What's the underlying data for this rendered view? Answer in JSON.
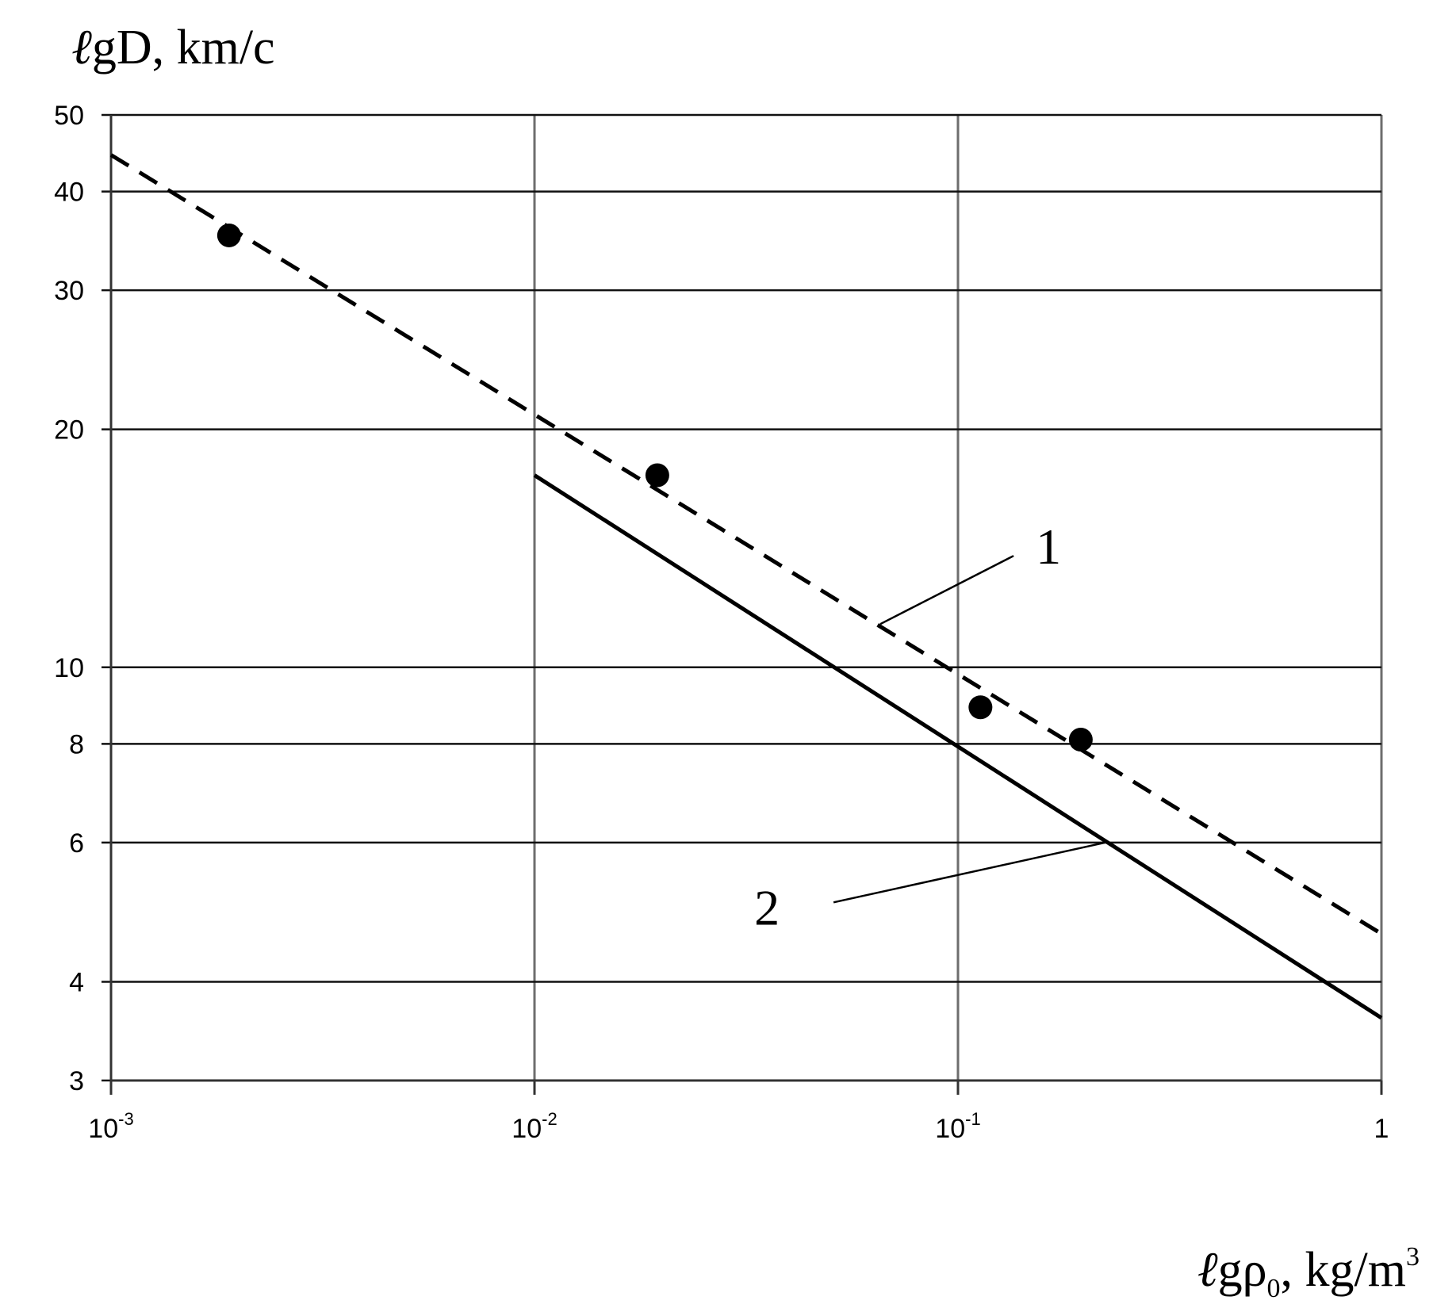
{
  "chart_data": {
    "type": "line",
    "x_scale": "log",
    "y_scale": "log",
    "xlim": [
      0.001,
      1
    ],
    "ylim": [
      3,
      50
    ],
    "grid": true,
    "y_title": {
      "prefix": "ℓ",
      "main": "gD,  km/c"
    },
    "x_title": {
      "prefix": "ℓ",
      "main": "gρ",
      "sub": "0",
      "after": ",  kg/m",
      "sup": "3"
    },
    "x_ticks": [
      {
        "value": 0.001,
        "base": "10",
        "exp": "-3"
      },
      {
        "value": 0.01,
        "base": "10",
        "exp": "-2"
      },
      {
        "value": 0.1,
        "base": "10",
        "exp": "-1"
      },
      {
        "value": 1,
        "base": "1",
        "exp": ""
      }
    ],
    "y_ticks": [
      {
        "value": 3,
        "label": "3"
      },
      {
        "value": 4,
        "label": "4"
      },
      {
        "value": 6,
        "label": "6"
      },
      {
        "value": 8,
        "label": "8"
      },
      {
        "value": 10,
        "label": "10"
      },
      {
        "value": 20,
        "label": "20"
      },
      {
        "value": 30,
        "label": "30"
      },
      {
        "value": 40,
        "label": "40"
      },
      {
        "value": 50,
        "label": "50"
      }
    ],
    "series": [
      {
        "label": "1",
        "style": "dashed",
        "x": [
          0.001,
          1
        ],
        "y": [
          44.5,
          4.6
        ]
      },
      {
        "label": "2",
        "style": "solid",
        "x": [
          0.01,
          1
        ],
        "y": [
          17.5,
          3.6
        ]
      }
    ],
    "points": {
      "x": [
        0.0019,
        0.0195,
        0.113,
        0.195
      ],
      "y": [
        35.2,
        17.5,
        8.9,
        8.1
      ]
    },
    "annotations": [
      {
        "text": "1",
        "series": 0,
        "x": 0.065
      },
      {
        "text": "2",
        "series": 1,
        "x": 0.225
      }
    ]
  }
}
